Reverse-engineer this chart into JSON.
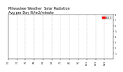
{
  "title": "Milwaukee Weather  Solar Radiation\nAvg per Day W/m2/minute",
  "title_fontsize": 3.5,
  "background_color": "#ffffff",
  "ylim": [
    0,
    8
  ],
  "xlim": [
    0,
    365
  ],
  "x_month_labels": [
    "1/1",
    "2/1",
    "3/1",
    "4/1",
    "5/1",
    "6/1",
    "7/1",
    "8/1",
    "9/1",
    "10/1",
    "11/1",
    "12/1"
  ],
  "y_tick_labels": [
    "1",
    "2",
    "3",
    "4",
    "5",
    "6",
    "7",
    "8"
  ],
  "legend_label": "2013",
  "legend_color": "#ff0000",
  "dot_color_current": "#ff0000",
  "dot_color_prev": "#000000",
  "grid_color": "#bbbbbb",
  "seed": 17
}
